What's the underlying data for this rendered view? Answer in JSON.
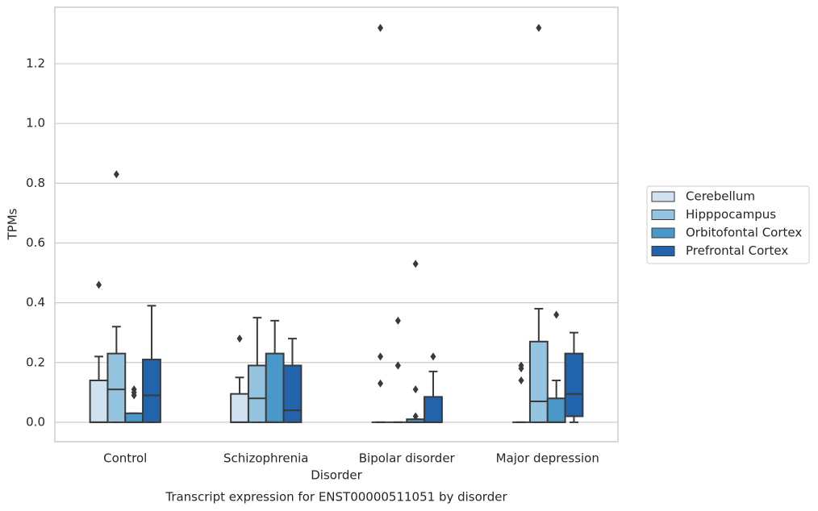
{
  "chart_data": {
    "type": "boxplot",
    "title": "Transcript expression for ENST00000511051 by disorder",
    "x_label": "Disorder",
    "y_label": "TPMs",
    "categories": [
      "Control",
      "Schizophrenia",
      "Bipolar disorder",
      "Major depression"
    ],
    "ylim": [
      -0.065,
      1.389
    ],
    "yticks": [
      {
        "value": 0,
        "label": "0.0"
      },
      0.2,
      0.4,
      0.6,
      0.8,
      {
        "value": 1,
        "label": "1.0"
      },
      1.2
    ],
    "grid": true,
    "legend": "right",
    "series": [
      {
        "name": "Cerebellum",
        "color": "#d0e1f2",
        "boxes": [
          {
            "whislo": 0,
            "q1": 0,
            "med": 0,
            "q3": 0.14,
            "whishi": 0.22,
            "fliers": [
              0.46
            ]
          },
          {
            "whislo": 0,
            "q1": 0,
            "med": 0,
            "q3": 0.095,
            "whishi": 0.15,
            "fliers": [
              0.28
            ]
          },
          {
            "whislo": 0,
            "q1": 0,
            "med": 0,
            "q3": 0,
            "whishi": 0,
            "fliers": [
              1.32,
              0.22,
              0.13
            ]
          },
          {
            "whislo": 0,
            "q1": 0,
            "med": 0,
            "q3": 0,
            "whishi": 0,
            "fliers": [
              0.19,
              0.18,
              0.14
            ]
          }
        ]
      },
      {
        "name": "Hipppocampus",
        "color": "#94c4df",
        "boxes": [
          {
            "whislo": 0,
            "q1": 0,
            "med": 0.11,
            "q3": 0.23,
            "whishi": 0.32,
            "fliers": [
              0.83
            ]
          },
          {
            "whislo": 0,
            "q1": 0,
            "med": 0.08,
            "q3": 0.19,
            "whishi": 0.35,
            "fliers": []
          },
          {
            "whislo": 0,
            "q1": 0,
            "med": 0,
            "q3": 0,
            "whishi": 0,
            "fliers": [
              0.34,
              0.19,
              0.19
            ]
          },
          {
            "whislo": 0,
            "q1": 0,
            "med": 0.07,
            "q3": 0.27,
            "whishi": 0.38,
            "fliers": [
              1.32
            ]
          }
        ]
      },
      {
        "name": "Orbitofontal Cortex",
        "color": "#4a98c9",
        "boxes": [
          {
            "whislo": 0,
            "q1": 0,
            "med": 0,
            "q3": 0.03,
            "whishi": 0.03,
            "fliers": [
              0.11,
              0.1,
              0.09
            ]
          },
          {
            "whislo": 0,
            "q1": 0,
            "med": 0,
            "q3": 0.23,
            "whishi": 0.34,
            "fliers": []
          },
          {
            "whislo": 0,
            "q1": 0,
            "med": 0,
            "q3": 0.01,
            "whishi": 0.01,
            "fliers": [
              0.53,
              0.11,
              0.02
            ]
          },
          {
            "whislo": 0,
            "q1": 0,
            "med": 0,
            "q3": 0.08,
            "whishi": 0.14,
            "fliers": [
              0.36
            ]
          }
        ]
      },
      {
        "name": "Prefrontal Cortex",
        "color": "#2164ab",
        "boxes": [
          {
            "whislo": 0,
            "q1": 0,
            "med": 0.09,
            "q3": 0.21,
            "whishi": 0.39,
            "fliers": []
          },
          {
            "whislo": 0,
            "q1": 0,
            "med": 0.04,
            "q3": 0.19,
            "whishi": 0.28,
            "fliers": []
          },
          {
            "whislo": 0,
            "q1": 0,
            "med": 0,
            "q3": 0.085,
            "whishi": 0.17,
            "fliers": [
              0.22
            ]
          },
          {
            "whislo": 0,
            "q1": 0.02,
            "med": 0.095,
            "q3": 0.23,
            "whishi": 0.3,
            "fliers": []
          }
        ]
      }
    ]
  }
}
